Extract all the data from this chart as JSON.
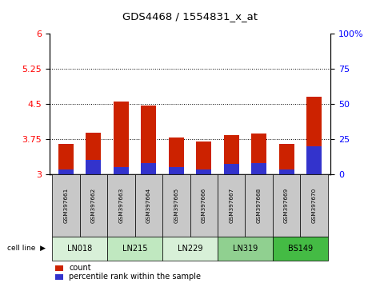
{
  "title": "GDS4468 / 1554831_x_at",
  "samples": [
    "GSM397661",
    "GSM397662",
    "GSM397663",
    "GSM397664",
    "GSM397665",
    "GSM397666",
    "GSM397667",
    "GSM397668",
    "GSM397669",
    "GSM397670"
  ],
  "count_values": [
    3.64,
    3.88,
    4.56,
    4.46,
    3.78,
    3.7,
    3.83,
    3.86,
    3.64,
    4.65
  ],
  "percentile_values": [
    3,
    10,
    5,
    8,
    5,
    3,
    7,
    8,
    3,
    20
  ],
  "bar_bottom": 3.0,
  "ylim_left": [
    3.0,
    6.0
  ],
  "ylim_right": [
    0,
    100
  ],
  "yticks_left": [
    3.0,
    3.75,
    4.5,
    5.25,
    6.0
  ],
  "yticks_right": [
    0,
    25,
    50,
    75,
    100
  ],
  "ytick_labels_left": [
    "3",
    "3.75",
    "4.5",
    "5.25",
    "6"
  ],
  "ytick_labels_right": [
    "0",
    "25",
    "50",
    "75",
    "100%"
  ],
  "hlines": [
    3.75,
    4.5,
    5.25
  ],
  "bar_color": "#cc2200",
  "percentile_color": "#3333cc",
  "plot_bg": "#ffffff",
  "sample_bg": "#c8c8c8",
  "bar_width": 0.55,
  "cl_labels": [
    "LN018",
    "LN215",
    "LN229",
    "LN319",
    "BS149"
  ],
  "cl_ranges": [
    [
      0,
      1
    ],
    [
      2,
      3
    ],
    [
      4,
      5
    ],
    [
      6,
      7
    ],
    [
      8,
      9
    ]
  ],
  "cl_colors": [
    "#d8f0d8",
    "#c0e8c0",
    "#d8f0d8",
    "#90d090",
    "#44bb44"
  ],
  "legend_count_label": "count",
  "legend_percentile_label": "percentile rank within the sample"
}
